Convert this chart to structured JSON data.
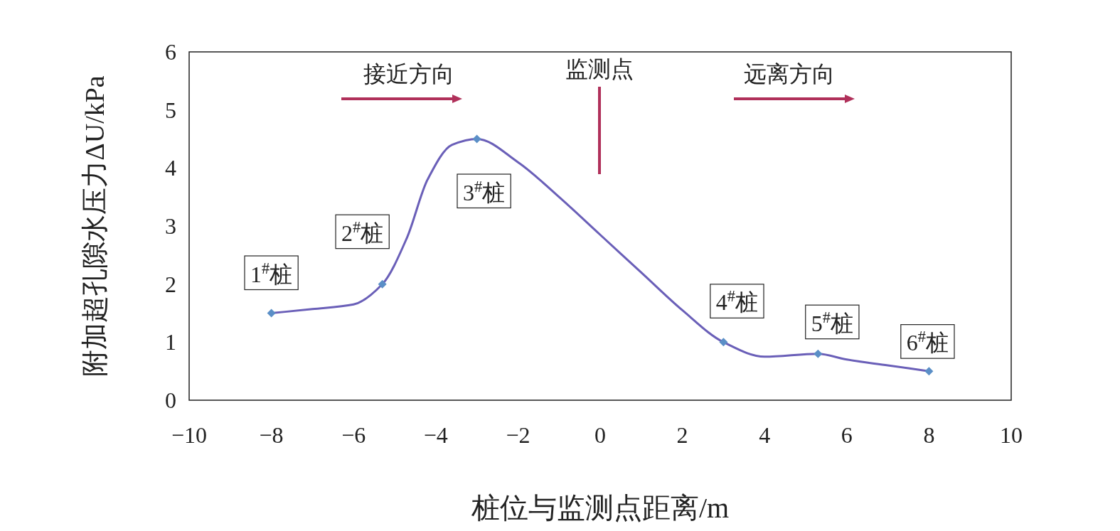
{
  "chart_data": {
    "type": "line",
    "xlabel": "桩位与监测点距离/m",
    "ylabel": "附加超孔隙水压力ΔU/kPa",
    "xlim": [
      -10,
      10
    ],
    "xticks": [
      {
        "value": -10,
        "label": "−10"
      },
      {
        "value": -8,
        "label": "−8"
      },
      {
        "value": -6,
        "label": "−6"
      },
      {
        "value": -4,
        "label": "−4"
      },
      {
        "value": -2,
        "label": "−2"
      },
      0,
      2,
      4,
      6,
      8,
      10
    ],
    "ylim": [
      0,
      6
    ],
    "yticks": [
      0,
      1,
      2,
      3,
      4,
      5,
      6
    ],
    "grid": false,
    "series": [
      {
        "color": "#6a5fb8",
        "marker": "none",
        "x": [
          -8,
          -7,
          -6,
          -5.3,
          -4.7,
          -4.2,
          -3.6,
          -3,
          -2,
          -1,
          0,
          1,
          2,
          3,
          4,
          5.3,
          6,
          7,
          8
        ],
        "values": [
          1.5,
          1.57,
          1.65,
          2.0,
          2.8,
          3.8,
          4.4,
          4.5,
          4.1,
          3.5,
          2.85,
          2.2,
          1.55,
          1.0,
          0.75,
          0.8,
          0.7,
          0.6,
          0.5
        ]
      },
      {
        "type": "scatter",
        "color": "#5b8fc7",
        "marker": "diamond",
        "x": [
          -8,
          -5.3,
          -3,
          3,
          5.3,
          8
        ],
        "values": [
          1.5,
          2.0,
          4.5,
          1.0,
          0.8,
          0.5
        ]
      }
    ],
    "annotations": [
      {
        "text": "1$^{#}$桩",
        "x": -8,
        "y": 1.5
      },
      {
        "text": "2$^{#}$桩",
        "x": -5.3,
        "y": 2.0
      },
      {
        "text": "3$^{#}$桩",
        "x": -3,
        "y": 4.5
      },
      {
        "text": "4$^{#}$桩",
        "x": 3,
        "y": 1.0
      },
      {
        "text": "5$^{#}$桩",
        "x": 5.3,
        "y": 0.8
      },
      {
        "text": "6$^{#}$桩",
        "x": 8,
        "y": 0.5
      },
      "接近方向",
      "监测点",
      "远离方向"
    ]
  }
}
